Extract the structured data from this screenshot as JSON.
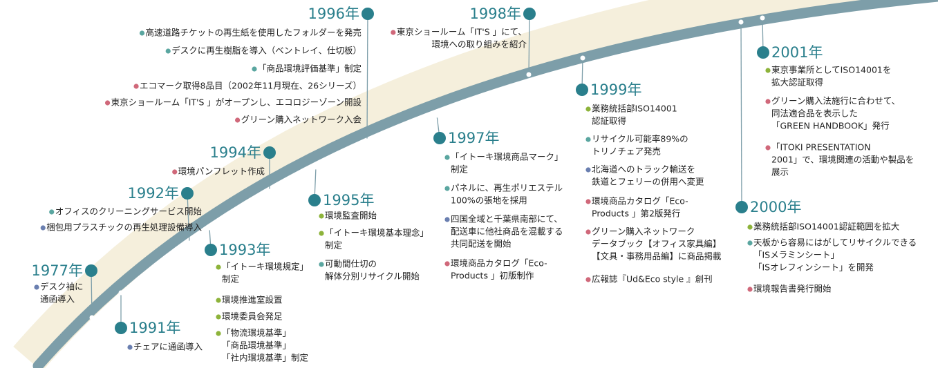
{
  "events": [
    {
      "year": "1977年",
      "items": [
        {
          "color": "#6a7fb0",
          "lines": [
            "デスク袖に",
            "通函導入"
          ]
        }
      ]
    },
    {
      "year": "1991年",
      "items": [
        {
          "color": "#6a7fb0",
          "lines": [
            "チェアに通函導入"
          ]
        }
      ]
    },
    {
      "year": "1992年",
      "items": [
        {
          "color": "#5aa6a0",
          "lines": [
            "オフィスのクリーニングサービス開始"
          ]
        },
        {
          "color": "#6a7fb0",
          "lines": [
            "梱包用プラスチックの再生処理設備導入"
          ]
        }
      ]
    },
    {
      "year": "1993年",
      "items": [
        {
          "color": "#8db33a",
          "lines": [
            "「イトーキ環境規定」",
            "制定"
          ]
        },
        {
          "color": "#8db33a",
          "lines": [
            "環境推進室設置"
          ]
        },
        {
          "color": "#8db33a",
          "lines": [
            "環境委員会発足"
          ]
        },
        {
          "color": "#8db33a",
          "lines": [
            "「物流環境基準」",
            "「商品環境基準」",
            "「社内環境基準」制定"
          ]
        }
      ]
    },
    {
      "year": "1994年",
      "items": [
        {
          "color": "#d0687a",
          "lines": [
            "環境パンフレット作成"
          ]
        }
      ]
    },
    {
      "year": "1995年",
      "items": [
        {
          "color": "#8db33a",
          "lines": [
            "環境監査開始"
          ]
        },
        {
          "color": "#8db33a",
          "lines": [
            "「イトーキ環境基本理念」",
            "制定"
          ]
        },
        {
          "color": "#5aa6a0",
          "lines": [
            "可動間仕切の",
            "解体分別リサイクル開始"
          ]
        }
      ]
    },
    {
      "year": "1996年",
      "items": [
        {
          "color": "#5aa6a0",
          "lines": [
            "高速道路チケットの再生紙を使用したフォルダーを発売"
          ]
        },
        {
          "color": "#5aa6a0",
          "lines": [
            "デスクに再生樹脂を導入（ベントレイ、仕切板）"
          ]
        },
        {
          "color": "#5aa6a0",
          "lines": [
            "「商品環境評価基準」制定"
          ]
        },
        {
          "color": "#d0687a",
          "lines": [
            "エコマーク取得8品目（2002年11月現在、26シリーズ）"
          ]
        },
        {
          "color": "#d0687a",
          "lines": [
            "東京ショールーム「IT'S 」がオープンし、エコロジーゾーン開設"
          ]
        },
        {
          "color": "#d0687a",
          "lines": [
            "グリーン購入ネットワーク入会"
          ]
        }
      ]
    },
    {
      "year": "1997年",
      "items": [
        {
          "color": "#5aa6a0",
          "lines": [
            "「イトーキ環境商品マーク」",
            "制定"
          ]
        },
        {
          "color": "#5aa6a0",
          "lines": [
            "パネルに、再生ポリエステル",
            "100%の張地を採用"
          ]
        },
        {
          "color": "#6a7fb0",
          "lines": [
            "四国全域と千葉県南部にて、",
            "配送車に他社商品を混載する",
            "共同配送を開始"
          ]
        },
        {
          "color": "#d0687a",
          "lines": [
            "環境商品カタログ「Eco-",
            "Products 」初版制作"
          ]
        }
      ]
    },
    {
      "year": "1998年",
      "items": [
        {
          "color": "#d0687a",
          "lines": [
            "東京ショールーム「IT'S 」にて、",
            "環境への取り組みを紹介"
          ]
        }
      ]
    },
    {
      "year": "1999年",
      "items": [
        {
          "color": "#8db33a",
          "lines": [
            "業務統括部ISO14001",
            "認証取得"
          ]
        },
        {
          "color": "#5aa6a0",
          "lines": [
            "リサイクル可能率89%の",
            "トリノチェア発売"
          ]
        },
        {
          "color": "#6a7fb0",
          "lines": [
            "北海道へのトラック輸送を",
            "鉄道とフェリーの併用へ変更"
          ]
        },
        {
          "color": "#d0687a",
          "lines": [
            "環境商品カタログ「Eco-",
            "Products 」第2版発行"
          ]
        },
        {
          "color": "#d0687a",
          "lines": [
            "グリーン購入ネットワーク",
            "データブック【オフィス家具編】",
            "【文具・事務用品編】に商品掲載"
          ]
        },
        {
          "color": "#d0687a",
          "lines": [
            "広報誌『Ud&Eco style 』創刊"
          ]
        }
      ]
    },
    {
      "year": "2000年",
      "items": [
        {
          "color": "#8db33a",
          "lines": [
            "業務統括部ISO14001認証範囲を拡大"
          ]
        },
        {
          "color": "#5aa6a0",
          "lines": [
            "天板から容易にはがしてリサイクルできる",
            "「ISメラミンシート」",
            "「ISオレフィンシート」を開発"
          ]
        },
        {
          "color": "#d0687a",
          "lines": [
            "環境報告書発行開始"
          ]
        }
      ]
    },
    {
      "year": "2001年",
      "items": [
        {
          "color": "#8db33a",
          "lines": [
            "東京事業所としてISO14001を",
            "拡大認証取得"
          ]
        },
        {
          "color": "#d0687a",
          "lines": [
            "グリーン購入法施行に合わせて、",
            "同法適合品を表示した",
            "「GREEN HANDBOOK」発行"
          ]
        },
        {
          "color": "#d0687a",
          "lines": [
            "「ITOKI PRESENTATION",
            "2001」で、環境関連の活動や製品を",
            "展示"
          ]
        }
      ]
    }
  ]
}
